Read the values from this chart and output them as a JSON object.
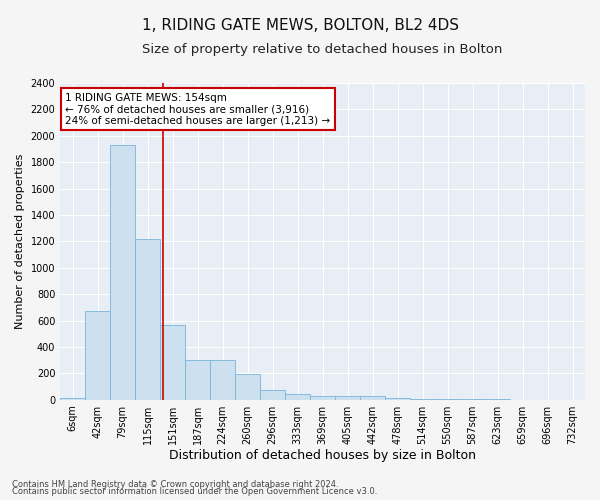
{
  "title": "1, RIDING GATE MEWS, BOLTON, BL2 4DS",
  "subtitle": "Size of property relative to detached houses in Bolton",
  "xlabel": "Distribution of detached houses by size in Bolton",
  "ylabel": "Number of detached properties",
  "bar_labels": [
    "6sqm",
    "42sqm",
    "79sqm",
    "115sqm",
    "151sqm",
    "187sqm",
    "224sqm",
    "260sqm",
    "296sqm",
    "333sqm",
    "369sqm",
    "405sqm",
    "442sqm",
    "478sqm",
    "514sqm",
    "550sqm",
    "587sqm",
    "623sqm",
    "659sqm",
    "696sqm",
    "732sqm"
  ],
  "bar_values": [
    15,
    670,
    1930,
    1220,
    570,
    300,
    300,
    195,
    75,
    40,
    30,
    25,
    25,
    10,
    5,
    5,
    5,
    2,
    1,
    1,
    1
  ],
  "bar_color": "#cce0f0",
  "bar_edge_color": "#7ab4d8",
  "vline_bin_index": 4,
  "vline_color": "#cc0000",
  "annotation_text": "1 RIDING GATE MEWS: 154sqm\n← 76% of detached houses are smaller (3,916)\n24% of semi-detached houses are larger (1,213) →",
  "annotation_box_color": "#cc0000",
  "ylim_max": 2400,
  "yticks": [
    0,
    200,
    400,
    600,
    800,
    1000,
    1200,
    1400,
    1600,
    1800,
    2000,
    2200,
    2400
  ],
  "footer_line1": "Contains HM Land Registry data © Crown copyright and database right 2024.",
  "footer_line2": "Contains public sector information licensed under the Open Government Licence v3.0.",
  "plot_bg_color": "#e8eef5",
  "fig_bg_color": "#f5f5f5",
  "grid_color": "#ffffff",
  "title_fontsize": 11,
  "subtitle_fontsize": 9.5,
  "xlabel_fontsize": 9,
  "ylabel_fontsize": 8,
  "tick_fontsize": 7,
  "annotation_fontsize": 7.5,
  "footer_fontsize": 6
}
